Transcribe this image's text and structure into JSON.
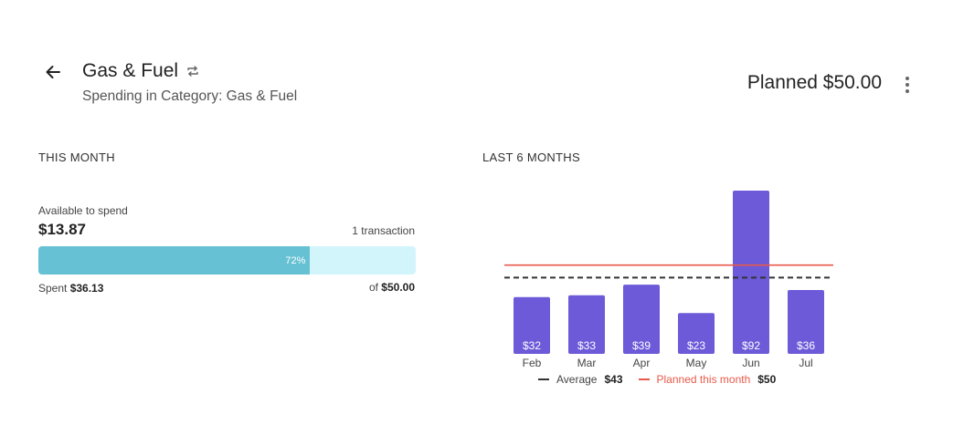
{
  "header": {
    "back_icon": "arrow-left-icon",
    "title": "Gas & Fuel",
    "repeat_icon": "repeat-icon",
    "subtitle": "Spending in Category: Gas & Fuel",
    "planned_label": "Planned $50.00",
    "more_icon": "more-vertical-icon"
  },
  "this_month": {
    "section_label": "THIS MONTH",
    "available_label": "Available to spend",
    "available_value": "$13.87",
    "transaction_count": "1 transaction",
    "progress_percent_label": "72%",
    "progress_fraction": 0.72,
    "spent_label": "Spent",
    "spent_value": "$36.13",
    "of_label": "of",
    "of_value": "$50.00",
    "colors": {
      "fill": "#65c1d3",
      "track": "#d2f5fb"
    }
  },
  "last_six_months": {
    "section_label": "LAST 6 MONTHS",
    "legend": {
      "average_label": "Average",
      "average_value": "$43",
      "planned_label": "Planned this month",
      "planned_value": "$50"
    }
  },
  "chart_data": {
    "type": "bar",
    "categories": [
      "Feb",
      "Mar",
      "Apr",
      "May",
      "Jun",
      "Jul"
    ],
    "values": [
      32,
      33,
      39,
      23,
      92,
      36
    ],
    "bar_labels": [
      "$32",
      "$33",
      "$39",
      "$23",
      "$92",
      "$36"
    ],
    "reference_lines": [
      {
        "name": "Average",
        "value": 43,
        "style": "dashed",
        "color": "#333333"
      },
      {
        "name": "Planned this month",
        "value": 50,
        "style": "solid",
        "color": "#e8594a"
      }
    ],
    "bar_color": "#6c5ad8",
    "ylim": [
      0,
      92
    ],
    "grid": false
  }
}
